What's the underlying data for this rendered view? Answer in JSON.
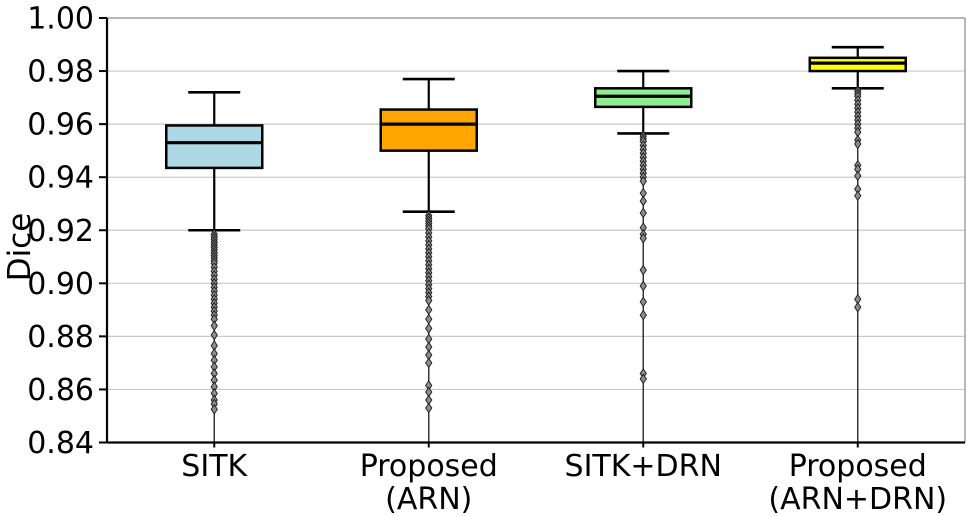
{
  "chart_data": {
    "type": "box",
    "title": "",
    "ylabel": "Dice",
    "xlabel": "",
    "ylim": [
      0.84,
      1.0
    ],
    "yticks": [
      0.84,
      0.86,
      0.88,
      0.9,
      0.92,
      0.94,
      0.96,
      0.98,
      1.0
    ],
    "ytick_labels": [
      "0.84",
      "0.86",
      "0.88",
      "0.90",
      "0.92",
      "0.94",
      "0.96",
      "0.98",
      "1.00"
    ],
    "grid": "horizontal",
    "legend": "none",
    "colors": {
      "grid": "#c9c9c9",
      "spine_dark": "#000000",
      "spine_light": "#a0a0a0",
      "outlier_fill": "#8c8c8c",
      "outlier_edge": "#1a1a1a",
      "stem": "#2a2a2a"
    },
    "categories": [
      "SITK",
      "Proposed\n(ARN)",
      "SITK+DRN",
      "Proposed\n(ARN+DRN)"
    ],
    "series": [
      {
        "name": "SITK",
        "color": "#ADD8E6",
        "whisker_high": 0.972,
        "q3": 0.9595,
        "median": 0.953,
        "q1": 0.9435,
        "whisker_low": 0.92,
        "outliers": [
          0.9185,
          0.9175,
          0.9165,
          0.9155,
          0.9145,
          0.9135,
          0.9125,
          0.9115,
          0.9105,
          0.9095,
          0.9085,
          0.9075,
          0.906,
          0.9045,
          0.903,
          0.9015,
          0.9,
          0.8985,
          0.897,
          0.8955,
          0.894,
          0.8925,
          0.891,
          0.8895,
          0.888,
          0.8865,
          0.884,
          0.8805,
          0.8765,
          0.8735,
          0.871,
          0.8685,
          0.866,
          0.8635,
          0.861,
          0.8585,
          0.856,
          0.8545,
          0.8525
        ]
      },
      {
        "name": "Proposed (ARN)",
        "color": "#FFA500",
        "whisker_high": 0.977,
        "q3": 0.9655,
        "median": 0.96,
        "q1": 0.95,
        "whisker_low": 0.927,
        "outliers": [
          0.9255,
          0.9245,
          0.9235,
          0.9225,
          0.9215,
          0.9205,
          0.919,
          0.9175,
          0.916,
          0.9145,
          0.913,
          0.9115,
          0.91,
          0.9085,
          0.907,
          0.9055,
          0.904,
          0.9025,
          0.901,
          0.8995,
          0.898,
          0.8965,
          0.895,
          0.8935,
          0.89,
          0.8865,
          0.883,
          0.879,
          0.876,
          0.873,
          0.87,
          0.8615,
          0.859,
          0.856,
          0.853
        ]
      },
      {
        "name": "SITK+DRN",
        "color": "#90EE90",
        "whisker_high": 0.98,
        "q3": 0.9735,
        "median": 0.9705,
        "q1": 0.9665,
        "whisker_low": 0.9565,
        "outliers": [
          0.9555,
          0.9545,
          0.9535,
          0.952,
          0.9505,
          0.949,
          0.9475,
          0.946,
          0.9445,
          0.943,
          0.9415,
          0.94,
          0.9385,
          0.934,
          0.931,
          0.9265,
          0.921,
          0.9185,
          0.917,
          0.905,
          0.899,
          0.893,
          0.888,
          0.866,
          0.864
        ]
      },
      {
        "name": "Proposed (ARN+DRN)",
        "color": "#FFFF00",
        "whisker_high": 0.989,
        "q3": 0.985,
        "median": 0.983,
        "q1": 0.98,
        "whisker_low": 0.9735,
        "outliers": [
          0.9725,
          0.9715,
          0.9705,
          0.969,
          0.9675,
          0.966,
          0.9645,
          0.963,
          0.9615,
          0.96,
          0.9585,
          0.957,
          0.954,
          0.9525,
          0.9445,
          0.943,
          0.9405,
          0.9355,
          0.933,
          0.894,
          0.891
        ]
      }
    ]
  }
}
